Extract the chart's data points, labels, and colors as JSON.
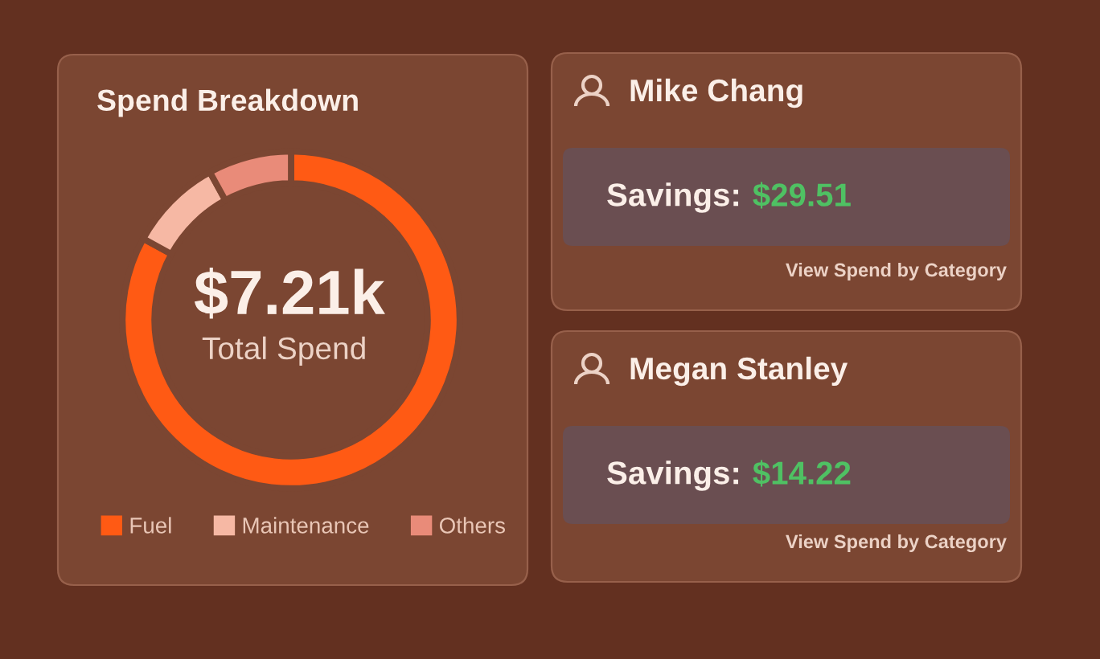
{
  "chart_data": [
    {
      "type": "donut",
      "title": "Spend Breakdown",
      "categories": [
        "Fuel",
        "Maintenance",
        "Others"
      ],
      "values": [
        83,
        9,
        8
      ],
      "colors": [
        "#ff5a14",
        "#f6b8a4",
        "#e98b79"
      ],
      "legend": "bottom",
      "annotations": [
        "$7.21k",
        "Total Spend"
      ]
    },
    {
      "type": "other",
      "title": "Mike Chang",
      "annotations": [
        "Savings:",
        "$29.51",
        "View Spend by Category"
      ]
    },
    {
      "type": "other",
      "title": "Megan Stanley",
      "annotations": [
        "Savings:",
        "$14.22",
        "View Spend by Category"
      ]
    }
  ]
}
